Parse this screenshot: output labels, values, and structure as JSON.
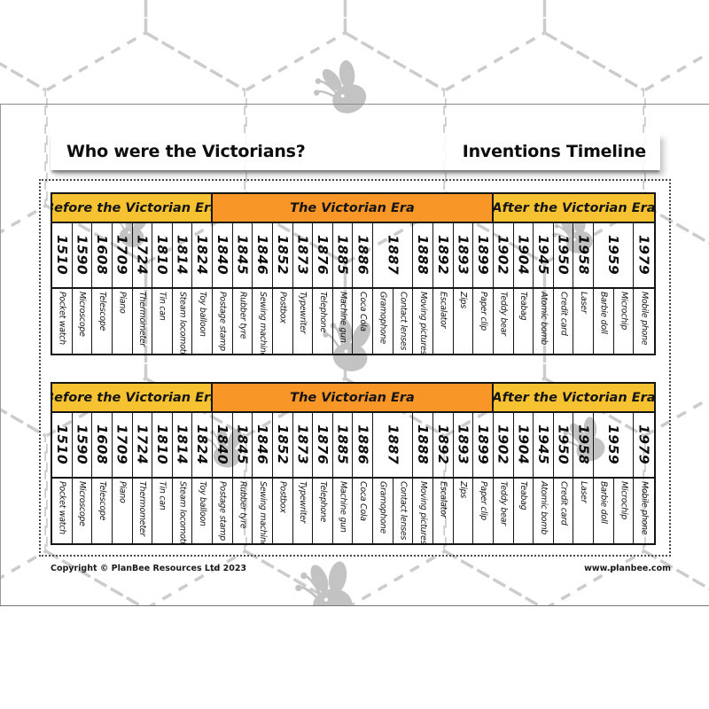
{
  "header": {
    "title_left": "Who were the Victorians?",
    "title_right": "Inventions Timeline"
  },
  "footer": {
    "copyright": "Copyright © PlanBee Resources Ltd 2023",
    "website": "www.planbee.com"
  },
  "colors": {
    "era_gold": "#F7C231",
    "era_orange": "#F89628",
    "table_border": "#141414",
    "hex_stroke": "#cccccc",
    "bee_fill": "#c3c3c3"
  },
  "watermark": {
    "pattern_icon": "hexagon-dashed",
    "mascot_icon": "bee-silhouette"
  },
  "table_count": 2,
  "timeline": {
    "sections": [
      {
        "label": "Before the Victorian Era",
        "tone": "gold",
        "entries": [
          {
            "year": "1510",
            "span": 1,
            "inventions": [
              "Pocket watch"
            ]
          },
          {
            "year": "1590",
            "span": 1,
            "inventions": [
              "Microscope"
            ]
          },
          {
            "year": "1608",
            "span": 1,
            "inventions": [
              "Telescope"
            ]
          },
          {
            "year": "1709",
            "span": 1,
            "inventions": [
              "Piano"
            ]
          },
          {
            "year": "1724",
            "span": 1,
            "inventions": [
              "Thermometer"
            ]
          },
          {
            "year": "1810",
            "span": 1,
            "inventions": [
              "Tin can"
            ]
          },
          {
            "year": "1814",
            "span": 1,
            "inventions": [
              "Steam locomotive"
            ]
          },
          {
            "year": "1824",
            "span": 1,
            "inventions": [
              "Toy balloon"
            ]
          }
        ]
      },
      {
        "label": "The Victorian Era",
        "tone": "orange",
        "entries": [
          {
            "year": "1840",
            "span": 1,
            "inventions": [
              "Postage stamp"
            ]
          },
          {
            "year": "1845",
            "span": 1,
            "inventions": [
              "Rubber tyre"
            ]
          },
          {
            "year": "1846",
            "span": 1,
            "inventions": [
              "Sewing machine"
            ]
          },
          {
            "year": "1852",
            "span": 1,
            "inventions": [
              "Postbox"
            ]
          },
          {
            "year": "1873",
            "span": 1,
            "inventions": [
              "Typewriter"
            ]
          },
          {
            "year": "1876",
            "span": 1,
            "inventions": [
              "Telephone"
            ]
          },
          {
            "year": "1885",
            "span": 1,
            "inventions": [
              "Machine gun"
            ]
          },
          {
            "year": "1886",
            "span": 1,
            "inventions": [
              "Coca Cola"
            ]
          },
          {
            "year": "1887",
            "span": 2,
            "inventions": [
              "Gramophone",
              "Contact lenses"
            ]
          },
          {
            "year": "1888",
            "span": 1,
            "inventions": [
              "Moving pictures"
            ]
          },
          {
            "year": "1892",
            "span": 1,
            "inventions": [
              "Escalator"
            ]
          },
          {
            "year": "1893",
            "span": 1,
            "inventions": [
              "Zips"
            ]
          },
          {
            "year": "1899",
            "span": 1,
            "inventions": [
              "Paper clip"
            ]
          }
        ]
      },
      {
        "label": "After the Victorian Era",
        "tone": "gold",
        "entries": [
          {
            "year": "1902",
            "span": 1,
            "inventions": [
              "Teddy bear"
            ]
          },
          {
            "year": "1904",
            "span": 1,
            "inventions": [
              "Teabag"
            ]
          },
          {
            "year": "1945",
            "span": 1,
            "inventions": [
              "Atomic bomb"
            ]
          },
          {
            "year": "1950",
            "span": 1,
            "inventions": [
              "Credit card"
            ]
          },
          {
            "year": "1958",
            "span": 1,
            "inventions": [
              "Laser"
            ]
          },
          {
            "year": "1959",
            "span": 2,
            "inventions": [
              "Barbie doll",
              "Microchip"
            ]
          },
          {
            "year": "1979",
            "span": 1,
            "inventions": [
              "Mobile phone"
            ]
          }
        ]
      }
    ]
  }
}
